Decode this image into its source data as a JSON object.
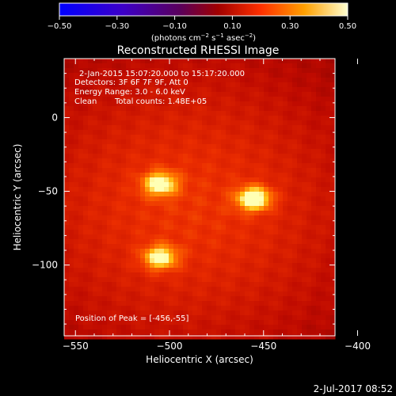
{
  "colorbar": {
    "ticks": [
      -0.5,
      -0.3,
      -0.1,
      0.1,
      0.3,
      0.5
    ],
    "tick_labels": [
      "−0.50",
      "−0.30",
      "−0.10",
      "0.10",
      "0.30",
      "0.50"
    ],
    "unit_label_html": "(photons cm<tspan dy='-4' font-size='7'>−2</tspan><tspan dy='4'> s</tspan><tspan dy='-4' font-size='7'>−1</tspan><tspan dy='4'> asec</tspan><tspan dy='-4' font-size='7'>−2</tspan><tspan dy='4'>)</tspan>",
    "range": [
      -0.5,
      0.5
    ]
  },
  "chart_data": {
    "type": "heatmap",
    "title": "Reconstructed RHESSI Image",
    "xlabel": "Heliocentric X (arcsec)",
    "ylabel": "Heliocentric Y (arcsec)",
    "xlim": [
      -556,
      -412
    ],
    "ylim": [
      -148,
      40
    ],
    "x_ticks": [
      -550,
      -500,
      -450,
      -400
    ],
    "x_tick_labels": [
      "−550",
      "−500",
      "−450",
      "−400"
    ],
    "y_ticks": [
      -100,
      -50,
      0
    ],
    "y_tick_labels": [
      "−100",
      "−50",
      "0"
    ],
    "sources": [
      {
        "x": -455,
        "y": -55,
        "peak": 1.0
      },
      {
        "x": -505,
        "y": -45,
        "peak": 0.85
      },
      {
        "x": -505,
        "y": -95,
        "peak": 0.85
      }
    ],
    "annotations": {
      "time": "2-Jan-2015 15:07:20.000 to 15:17:20.000",
      "detectors": "Detectors: 3F 6F 7F 9F, Att 0",
      "energy": "Energy Range: 3.0 - 6.0 keV",
      "method": "Clean",
      "counts": "Total counts: 1.48E+05",
      "peak_position": "Position of Peak = [-456,-55]"
    }
  },
  "footer": {
    "date": "2-Jul-2017 08:52"
  }
}
